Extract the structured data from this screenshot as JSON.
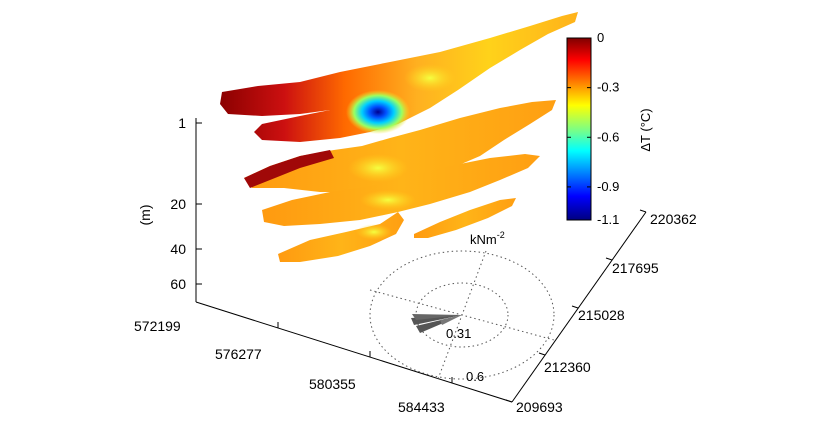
{
  "chart_data": {
    "type": "surface3d",
    "title": "",
    "axes": {
      "easting": {
        "ticks": [
          "572199",
          "576277",
          "580355",
          "584433"
        ]
      },
      "northing": {
        "ticks": [
          "209693",
          "212360",
          "215028",
          "217695",
          "220362"
        ]
      },
      "depth": {
        "label": "(m)",
        "ticks": [
          "1",
          "20",
          "40",
          "60"
        ]
      }
    },
    "colorbar": {
      "label": "ΔT (°C)",
      "range": [
        -1.1,
        0
      ],
      "ticks": [
        "0",
        "-0.3",
        "-0.6",
        "-0.9",
        "-1.1"
      ],
      "colormap": "jet"
    },
    "slices": [
      {
        "depth": 1,
        "min": -1.1,
        "max": 0
      },
      {
        "depth": 20,
        "min": -0.3,
        "max": 0
      },
      {
        "depth": 40,
        "min": -0.3,
        "max": -0.05
      },
      {
        "depth": 60,
        "min": -0.3,
        "max": -0.1
      }
    ],
    "wind_rose": {
      "unit_base": "kNm",
      "unit_exp": "-2",
      "ring_labels": [
        "0.31",
        "0.6"
      ],
      "direction": "WSW"
    }
  }
}
